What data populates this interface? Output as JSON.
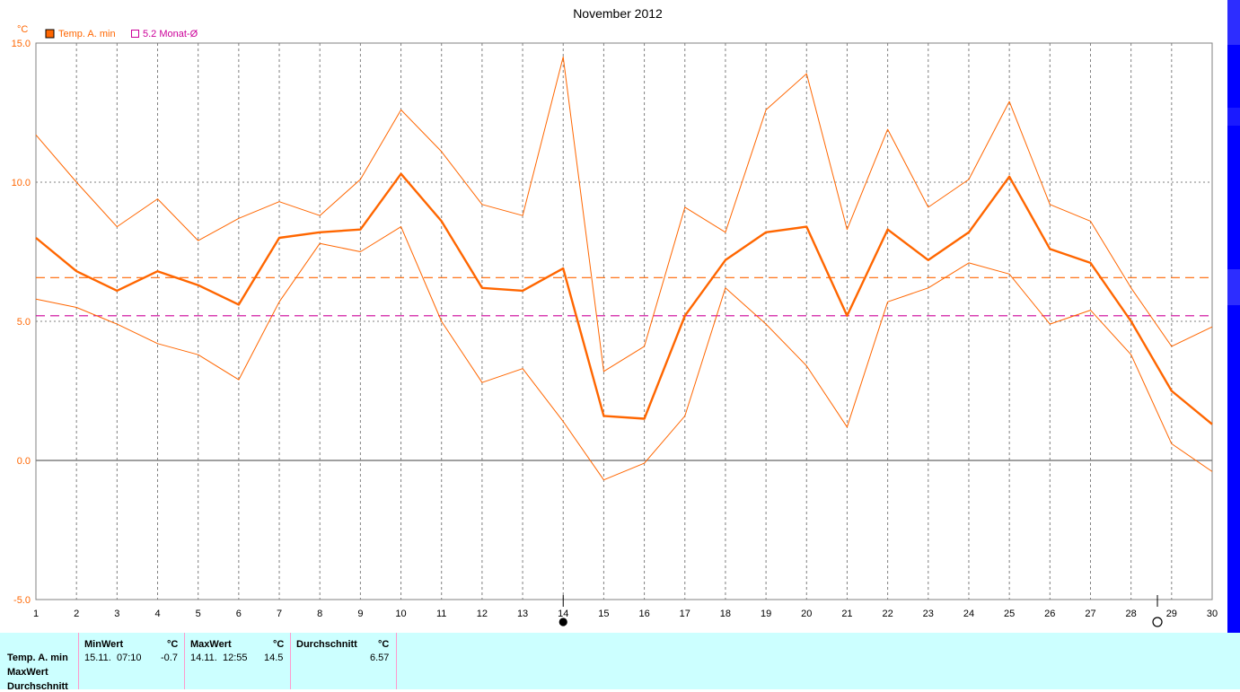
{
  "chart_data": {
    "type": "line",
    "title": "November 2012",
    "yunit": "°C",
    "ylim": [
      -5.0,
      15.0
    ],
    "yticks": [
      "15.0",
      "10.0",
      "5.0",
      "0.0",
      "-5.0"
    ],
    "ytick_values": [
      15,
      10,
      5,
      0,
      -5
    ],
    "x": [
      1,
      2,
      3,
      4,
      5,
      6,
      7,
      8,
      9,
      10,
      11,
      12,
      13,
      14,
      15,
      16,
      17,
      18,
      19,
      20,
      21,
      22,
      23,
      24,
      25,
      26,
      27,
      28,
      29,
      30
    ],
    "series": [
      {
        "name": "Temp. A. min",
        "role": "main",
        "values": [
          8.0,
          6.8,
          6.1,
          6.8,
          6.3,
          5.6,
          8.0,
          8.2,
          8.3,
          10.3,
          8.6,
          6.2,
          6.1,
          6.9,
          1.6,
          1.5,
          5.2,
          7.2,
          8.2,
          8.4,
          5.2,
          8.3,
          7.2,
          8.2,
          10.2,
          7.6,
          7.1,
          5.0,
          2.5,
          1.3
        ]
      },
      {
        "role": "upper",
        "values": [
          11.7,
          10.0,
          8.4,
          9.4,
          7.9,
          8.7,
          9.3,
          8.8,
          10.1,
          12.6,
          11.1,
          9.2,
          8.8,
          14.5,
          3.2,
          4.1,
          9.1,
          8.2,
          12.6,
          13.9,
          8.3,
          11.9,
          9.1,
          10.1,
          12.9,
          9.2,
          8.6,
          6.2,
          4.1,
          4.8
        ]
      },
      {
        "role": "lower",
        "values": [
          5.8,
          5.5,
          4.9,
          4.2,
          3.8,
          2.9,
          5.7,
          7.8,
          7.5,
          8.4,
          5.0,
          2.8,
          3.3,
          1.4,
          -0.7,
          -0.1,
          1.6,
          6.2,
          4.9,
          3.4,
          1.2,
          5.7,
          6.2,
          7.1,
          6.7,
          4.9,
          5.4,
          3.8,
          0.6,
          -0.4
        ]
      }
    ],
    "reference_lines": [
      {
        "value": 6.57,
        "color": "#ff6600",
        "dashed": true
      },
      {
        "value": 5.2,
        "color": "#cc0099",
        "dashed": true
      }
    ],
    "legend": [
      {
        "label": "Temp. A. min",
        "color": "#ff6600",
        "filled": true
      },
      {
        "label": "5.2 Monat-Ø",
        "color": "#cc0099",
        "filled": false
      }
    ],
    "grid": true,
    "markers": [
      {
        "x": 14,
        "symbol": "full-moon-dot",
        "filled": true
      },
      {
        "x": 28.65,
        "symbol": "new-moon-circle",
        "filled": false
      }
    ],
    "colors": {
      "series": "#ff6600",
      "reference_month": "#cc0099",
      "grid": "#808080",
      "zero_line": "#808080"
    }
  },
  "stats": {
    "row_labels": [
      "Temp. A. min",
      "MaxWert",
      "Durchschnitt"
    ],
    "min": {
      "header": "MinWert",
      "unit": "°C",
      "date": "15.11.",
      "time": "07:10",
      "value": "-0.7"
    },
    "max": {
      "header": "MaxWert",
      "unit": "°C",
      "date": "14.11.",
      "time": "12:55",
      "value": "14.5"
    },
    "avg": {
      "header": "Durchschnitt",
      "unit": "°C",
      "value": "6.57"
    },
    "background": "#ccffff"
  }
}
